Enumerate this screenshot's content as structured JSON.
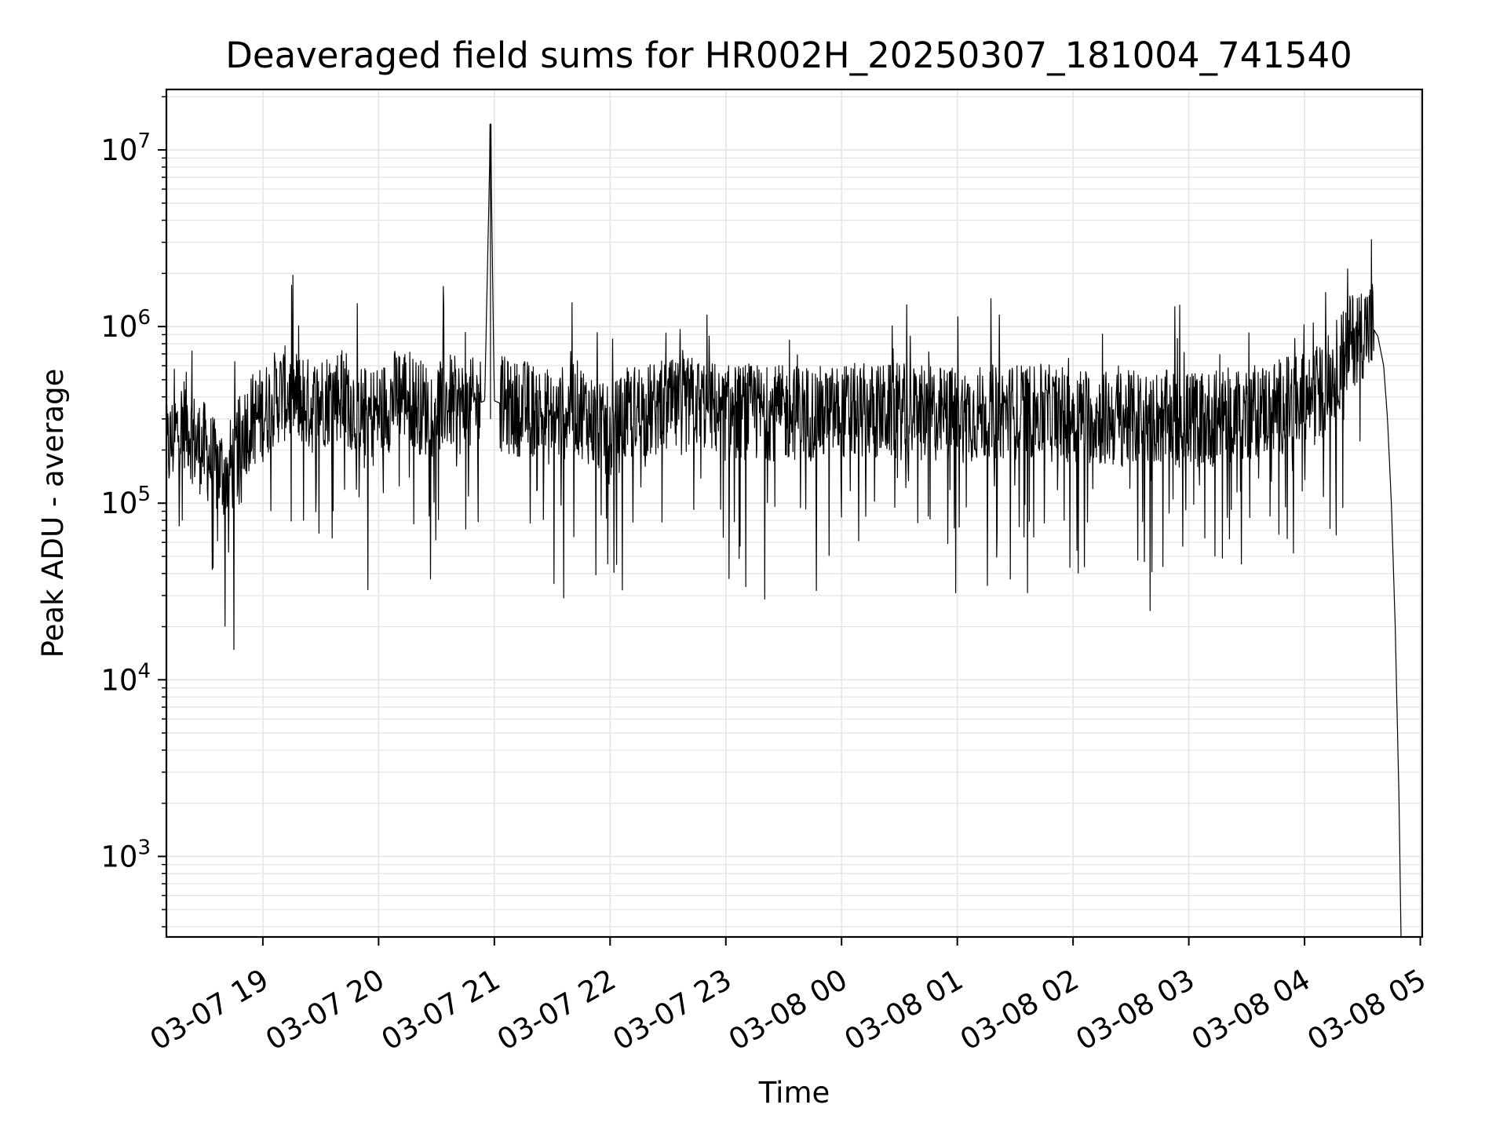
{
  "chart_data": {
    "type": "line",
    "title": "Deaveraged field sums for HR002H_20250307_181004_741540",
    "xlabel": "Time",
    "ylabel": "Peak ADU - average",
    "yscale": "log",
    "xlim": [
      "2025-03-07 18:10",
      "2025-03-08 05:01"
    ],
    "ylim": [
      350,
      22000000
    ],
    "grid": "on (major and minor)",
    "line_color": "#000000",
    "grid_color": "#e5e5e5",
    "x_ticks": [
      {
        "t": "2025-03-07 19:00",
        "label": "03-07 19"
      },
      {
        "t": "2025-03-07 20:00",
        "label": "03-07 20"
      },
      {
        "t": "2025-03-07 21:00",
        "label": "03-07 21"
      },
      {
        "t": "2025-03-07 22:00",
        "label": "03-07 22"
      },
      {
        "t": "2025-03-07 23:00",
        "label": "03-07 23"
      },
      {
        "t": "2025-03-08 00:00",
        "label": "03-08 00"
      },
      {
        "t": "2025-03-08 01:00",
        "label": "03-08 01"
      },
      {
        "t": "2025-03-08 02:00",
        "label": "03-08 02"
      },
      {
        "t": "2025-03-08 03:00",
        "label": "03-08 03"
      },
      {
        "t": "2025-03-08 04:00",
        "label": "03-08 04"
      },
      {
        "t": "2025-03-08 05:00",
        "label": "03-08 05"
      }
    ],
    "y_ticks": [
      {
        "value": 1000,
        "base": "10",
        "exp": "3"
      },
      {
        "value": 10000,
        "base": "10",
        "exp": "4"
      },
      {
        "value": 100000,
        "base": "10",
        "exp": "5"
      },
      {
        "value": 1000000,
        "base": "10",
        "exp": "6"
      },
      {
        "value": 10000000,
        "base": "10",
        "exp": "7"
      }
    ],
    "series": [
      {
        "points": [
          [
            "2025-03-07 18:10",
            190000
          ],
          [
            "2025-03-07 18:15",
            250000
          ],
          [
            "2025-03-07 18:20",
            300000
          ],
          [
            "2025-03-07 18:25",
            220000
          ],
          [
            "2025-03-07 18:30",
            200000
          ],
          [
            "2025-03-07 18:35",
            160000
          ],
          [
            "2025-03-07 18:40",
            150000
          ],
          [
            "2025-03-07 18:45",
            170000
          ],
          [
            "2025-03-07 18:50",
            260000
          ],
          [
            "2025-03-07 18:55",
            300000
          ],
          [
            "2025-03-07 19:00",
            320000
          ],
          [
            "2025-03-07 19:05",
            380000
          ],
          [
            "2025-03-07 19:10",
            420000
          ],
          [
            "2025-03-07 19:15",
            400000
          ],
          [
            "2025-03-07 19:20",
            380000
          ],
          [
            "2025-03-07 19:25",
            350000
          ],
          [
            "2025-03-07 19:30",
            380000
          ],
          [
            "2025-03-07 19:35",
            400000
          ],
          [
            "2025-03-07 19:40",
            420000
          ],
          [
            "2025-03-07 19:45",
            380000
          ],
          [
            "2025-03-07 19:50",
            330000
          ],
          [
            "2025-03-07 19:55",
            320000
          ],
          [
            "2025-03-07 20:00",
            330000
          ],
          [
            "2025-03-07 20:05",
            360000
          ],
          [
            "2025-03-07 20:10",
            420000
          ],
          [
            "2025-03-07 20:15",
            420000
          ],
          [
            "2025-03-07 20:20",
            360000
          ],
          [
            "2025-03-07 20:25",
            340000
          ],
          [
            "2025-03-07 20:30",
            360000
          ],
          [
            "2025-03-07 20:35",
            380000
          ],
          [
            "2025-03-07 20:40",
            360000
          ],
          [
            "2025-03-07 20:45",
            340000
          ],
          [
            "2025-03-07 20:50",
            360000
          ],
          [
            "2025-03-07 20:55",
            380000
          ],
          [
            "2025-03-07 20:58",
            14000000
          ],
          [
            "2025-03-07 21:00",
            380000
          ],
          [
            "2025-03-07 21:05",
            360000
          ],
          [
            "2025-03-07 21:10",
            340000
          ],
          [
            "2025-03-07 21:15",
            350000
          ],
          [
            "2025-03-07 21:20",
            340000
          ],
          [
            "2025-03-07 21:25",
            320000
          ],
          [
            "2025-03-07 21:30",
            300000
          ],
          [
            "2025-03-07 21:35",
            320000
          ],
          [
            "2025-03-07 21:40",
            350000
          ],
          [
            "2025-03-07 21:45",
            340000
          ],
          [
            "2025-03-07 21:50",
            300000
          ],
          [
            "2025-03-07 21:55",
            260000
          ],
          [
            "2025-03-07 22:00",
            240000
          ],
          [
            "2025-03-07 22:05",
            280000
          ],
          [
            "2025-03-07 22:10",
            320000
          ],
          [
            "2025-03-07 22:15",
            340000
          ],
          [
            "2025-03-07 22:20",
            330000
          ],
          [
            "2025-03-07 22:25",
            340000
          ],
          [
            "2025-03-07 22:30",
            350000
          ],
          [
            "2025-03-07 22:35",
            340000
          ],
          [
            "2025-03-07 22:40",
            360000
          ],
          [
            "2025-03-07 22:45",
            370000
          ],
          [
            "2025-03-07 22:50",
            360000
          ],
          [
            "2025-03-07 22:55",
            340000
          ],
          [
            "2025-03-07 23:00",
            320000
          ],
          [
            "2025-03-07 23:10",
            330000
          ],
          [
            "2025-03-07 23:20",
            330000
          ],
          [
            "2025-03-07 23:30",
            320000
          ],
          [
            "2025-03-07 23:40",
            330000
          ],
          [
            "2025-03-07 23:50",
            320000
          ],
          [
            "2025-03-08 00:00",
            330000
          ],
          [
            "2025-03-08 00:10",
            330000
          ],
          [
            "2025-03-08 00:20",
            330000
          ],
          [
            "2025-03-08 00:30",
            330000
          ],
          [
            "2025-03-08 00:40",
            320000
          ],
          [
            "2025-03-08 00:50",
            320000
          ],
          [
            "2025-03-08 01:00",
            320000
          ],
          [
            "2025-03-08 01:10",
            320000
          ],
          [
            "2025-03-08 01:20",
            330000
          ],
          [
            "2025-03-08 01:30",
            330000
          ],
          [
            "2025-03-08 01:40",
            330000
          ],
          [
            "2025-03-08 01:50",
            320000
          ],
          [
            "2025-03-08 02:00",
            320000
          ],
          [
            "2025-03-08 02:10",
            310000
          ],
          [
            "2025-03-08 02:20",
            300000
          ],
          [
            "2025-03-08 02:30",
            300000
          ],
          [
            "2025-03-08 02:40",
            310000
          ],
          [
            "2025-03-08 02:50",
            300000
          ],
          [
            "2025-03-08 03:00",
            300000
          ],
          [
            "2025-03-08 03:10",
            300000
          ],
          [
            "2025-03-08 03:20",
            310000
          ],
          [
            "2025-03-08 03:30",
            330000
          ],
          [
            "2025-03-08 03:40",
            340000
          ],
          [
            "2025-03-08 03:50",
            360000
          ],
          [
            "2025-03-08 04:00",
            380000
          ],
          [
            "2025-03-08 04:05",
            400000
          ],
          [
            "2025-03-08 04:10",
            450000
          ],
          [
            "2025-03-08 04:15",
            550000
          ],
          [
            "2025-03-08 04:20",
            680000
          ],
          [
            "2025-03-08 04:25",
            850000
          ],
          [
            "2025-03-08 04:30",
            950000
          ],
          [
            "2025-03-08 04:35",
            1000000
          ],
          [
            "2025-03-08 04:38",
            880000
          ],
          [
            "2025-03-08 04:41",
            600000
          ],
          [
            "2025-03-08 04:43",
            300000
          ],
          [
            "2025-03-08 04:45",
            100000
          ],
          [
            "2025-03-08 04:47",
            20000
          ],
          [
            "2025-03-08 04:49",
            2000
          ],
          [
            "2025-03-08 04:50",
            350
          ]
        ]
      }
    ]
  }
}
